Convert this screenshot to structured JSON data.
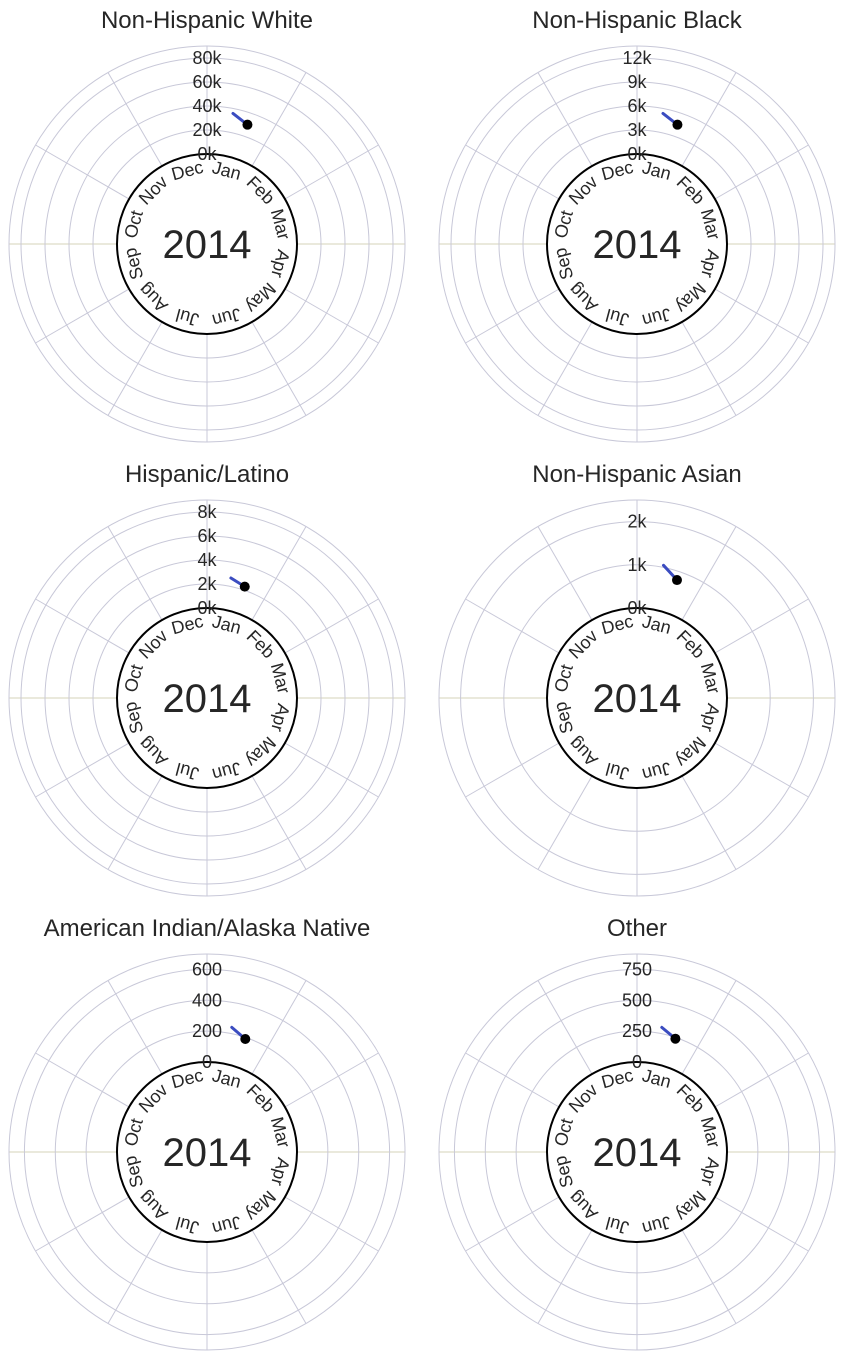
{
  "chart_data": [
    {
      "type": "radial-line",
      "title": "Non-Hispanic White",
      "year": "2014",
      "months": [
        "Jan",
        "Feb",
        "Mar",
        "Apr",
        "May",
        "Jun",
        "Jul",
        "Aug",
        "Sep",
        "Oct",
        "Nov",
        "Dec"
      ],
      "ticks": [
        0,
        20000,
        40000,
        60000,
        80000
      ],
      "tick_labels": [
        "0k",
        "20k",
        "40k",
        "60k",
        "80k"
      ],
      "rmax": 90000,
      "series": [
        {
          "values": [
            {
              "month": "Jan",
              "value": 36000
            },
            {
              "month": "Jan",
              "value": 30000
            }
          ]
        }
      ],
      "line_color": "#3b4cc0",
      "marker_color": "#000000"
    },
    {
      "type": "radial-line",
      "title": "Non-Hispanic Black",
      "year": "2014",
      "months": [
        "Jan",
        "Feb",
        "Mar",
        "Apr",
        "May",
        "Jun",
        "Jul",
        "Aug",
        "Sep",
        "Oct",
        "Nov",
        "Dec"
      ],
      "ticks": [
        0,
        3000,
        6000,
        9000,
        12000
      ],
      "tick_labels": [
        "0k",
        "3k",
        "6k",
        "9k",
        "12k"
      ],
      "rmax": 13500,
      "series": [
        {
          "values": [
            {
              "month": "Jan",
              "value": 5400
            },
            {
              "month": "Jan",
              "value": 4500
            }
          ]
        }
      ],
      "line_color": "#3b4cc0",
      "marker_color": "#000000"
    },
    {
      "type": "radial-line",
      "title": "Hispanic/Latino",
      "year": "2014",
      "months": [
        "Jan",
        "Feb",
        "Mar",
        "Apr",
        "May",
        "Jun",
        "Jul",
        "Aug",
        "Sep",
        "Oct",
        "Nov",
        "Dec"
      ],
      "ticks": [
        0,
        2000,
        4000,
        6000,
        8000
      ],
      "tick_labels": [
        "0k",
        "2k",
        "4k",
        "6k",
        "8k"
      ],
      "rmax": 9000,
      "series": [
        {
          "values": [
            {
              "month": "Jan",
              "value": 2700
            },
            {
              "month": "Jan",
              "value": 2300
            }
          ]
        }
      ],
      "line_color": "#3b4cc0",
      "marker_color": "#000000"
    },
    {
      "type": "radial-line",
      "title": "Non-Hispanic Asian",
      "year": "2014",
      "months": [
        "Jan",
        "Feb",
        "Mar",
        "Apr",
        "May",
        "Jun",
        "Jul",
        "Aug",
        "Sep",
        "Oct",
        "Nov",
        "Dec"
      ],
      "ticks": [
        0,
        1000,
        2000
      ],
      "tick_labels": [
        "0k",
        "1k",
        "2k"
      ],
      "rmax": 2500,
      "series": [
        {
          "values": [
            {
              "month": "Jan",
              "value": 1050
            },
            {
              "month": "Jan",
              "value": 800
            }
          ]
        }
      ],
      "line_color": "#3b4cc0",
      "marker_color": "#000000"
    },
    {
      "type": "radial-line",
      "title": "American Indian/Alaska Native",
      "year": "2014",
      "months": [
        "Jan",
        "Feb",
        "Mar",
        "Apr",
        "May",
        "Jun",
        "Jul",
        "Aug",
        "Sep",
        "Oct",
        "Nov",
        "Dec"
      ],
      "ticks": [
        0,
        200,
        400,
        600
      ],
      "tick_labels": [
        "0",
        "200",
        "400",
        "600"
      ],
      "rmax": 700,
      "series": [
        {
          "values": [
            {
              "month": "Jan",
              "value": 240
            },
            {
              "month": "Jan",
              "value": 190
            }
          ]
        }
      ],
      "line_color": "#3b4cc0",
      "marker_color": "#000000"
    },
    {
      "type": "radial-line",
      "title": "Other",
      "year": "2014",
      "months": [
        "Jan",
        "Feb",
        "Mar",
        "Apr",
        "May",
        "Jun",
        "Jul",
        "Aug",
        "Sep",
        "Oct",
        "Nov",
        "Dec"
      ],
      "ticks": [
        0,
        250,
        500,
        750
      ],
      "tick_labels": [
        "0",
        "250",
        "500",
        "750"
      ],
      "rmax": 875,
      "series": [
        {
          "values": [
            {
              "month": "Jan",
              "value": 300
            },
            {
              "month": "Jan",
              "value": 240
            }
          ]
        }
      ],
      "line_color": "#3b4cc0",
      "marker_color": "#000000"
    }
  ]
}
